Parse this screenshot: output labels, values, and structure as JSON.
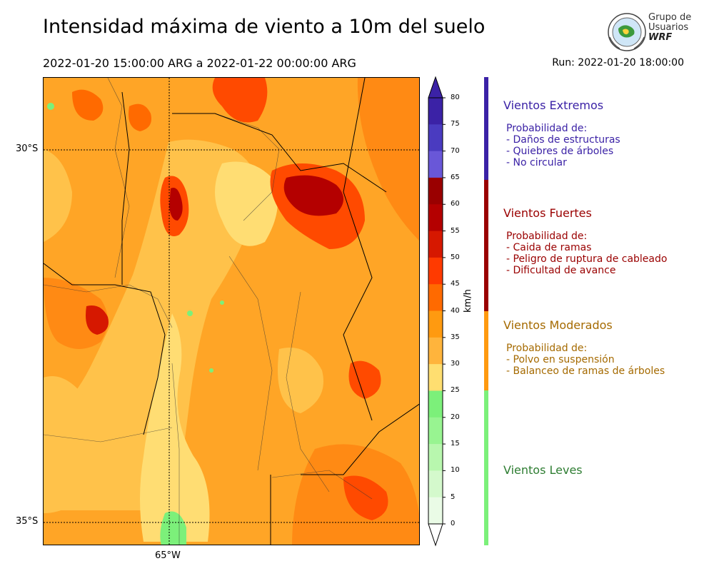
{
  "header": {
    "title": "Intensidad máxima de viento a 10m del suelo",
    "period": "2022-01-20 15:00:00 ARG  a  2022-01-22 00:00:00 ARG",
    "run": "Run: 2022-01-20 18:00:00"
  },
  "logo": {
    "line1": "Grupo de",
    "line2": "Usuarios",
    "line3": "WRF",
    "icon": "globe-seal-icon"
  },
  "map": {
    "lat_labels": [
      "30°S",
      "35°S"
    ],
    "lon_labels": [
      "65°W"
    ]
  },
  "colorbar": {
    "unit": "km/h",
    "ticks": [
      "80",
      "75",
      "70",
      "65",
      "60",
      "55",
      "50",
      "45",
      "40",
      "35",
      "30",
      "25",
      "20",
      "15",
      "10",
      "5",
      "0"
    ],
    "colors": [
      "#3b22a6",
      "#4a3bc0",
      "#6957d8",
      "#9a0000",
      "#b40000",
      "#d61800",
      "#ff3a00",
      "#ff6a00",
      "#ff9a10",
      "#ffb43c",
      "#ffde70",
      "#7cf07a",
      "#98f491",
      "#b8f7ae",
      "#d4f9cc",
      "#eafbe6"
    ]
  },
  "categories": [
    {
      "title": "Vientos Extremos",
      "color": "#3b22a6",
      "desc_header": "Probabilidad de:",
      "items": [
        "- Daños de estructuras",
        "- Quiebres de árboles",
        "- No circular"
      ]
    },
    {
      "title": "Vientos Fuertes",
      "color": "#9a0000",
      "desc_header": "Probabilidad de:",
      "items": [
        "- Caida de ramas",
        "- Peligro de ruptura de cableado",
        "- Dificultad de avance"
      ]
    },
    {
      "title": "Vientos Moderados",
      "color": "#a56a00",
      "bar_color": "#ff9a10",
      "desc_header": "Probabilidad de:",
      "items": [
        "- Polvo en suspensión",
        "- Balanceo de ramas de árboles"
      ]
    },
    {
      "title": "Vientos Leves",
      "color": "#2e7d32",
      "bar_color": "#7cf07a"
    }
  ]
}
